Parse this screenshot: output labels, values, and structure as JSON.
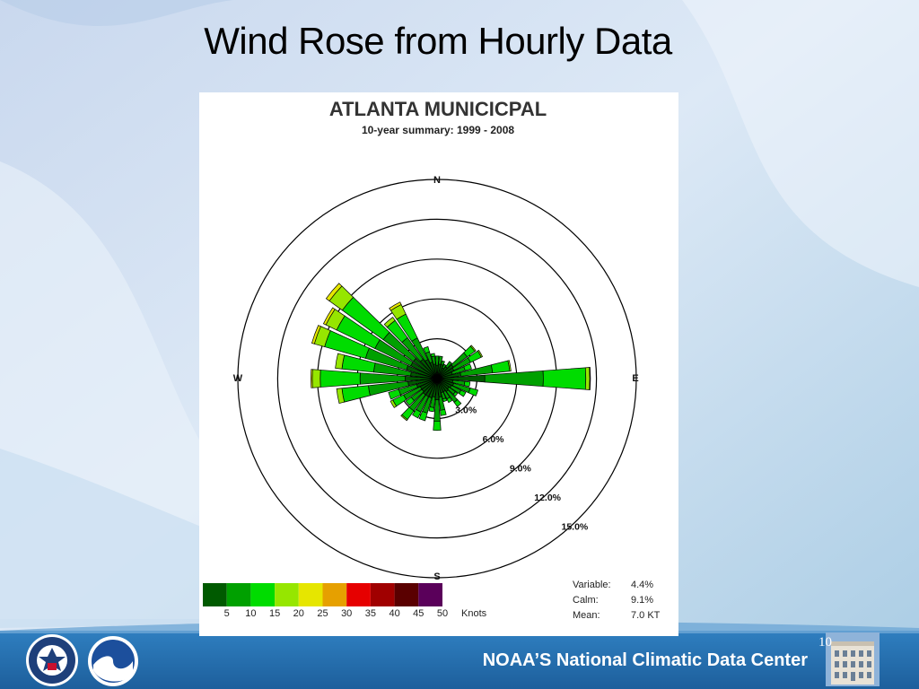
{
  "slide": {
    "title": "Wind Rose from Hourly Data",
    "footer": "NOAA’S National Climatic Data Center",
    "page_number": "10"
  },
  "chart_data": {
    "type": "wind-rose",
    "title": "ATLANTA MUNICICPAL",
    "subtitle": "10-year summary: 1999 - 2008",
    "directions_labels": {
      "north": "N",
      "east": "E",
      "south": "S",
      "west": "W"
    },
    "ring_labels": [
      "3.0%",
      "6.0%",
      "9.0%",
      "12.0%",
      "15.0%"
    ],
    "ring_values": [
      3,
      6,
      9,
      12,
      15
    ],
    "speed_bins_knots": [
      "5",
      "10",
      "15",
      "20",
      "25",
      "30",
      "35",
      "40",
      "45",
      "50"
    ],
    "speed_colors": [
      "#005a00",
      "#00a000",
      "#00dc00",
      "#96e600",
      "#e6e600",
      "#e6a000",
      "#e60000",
      "#a00000",
      "#5a0000",
      "#5a005a"
    ],
    "units_label": "Knots",
    "stats": [
      {
        "label": "Variable:",
        "value": "4.4%"
      },
      {
        "label": "Calm:",
        "value": "9.1%"
      },
      {
        "label": "Mean:",
        "value": "7.0 KT"
      }
    ],
    "petals": [
      {
        "direction_deg": 0,
        "segments": [
          1.0,
          0.7
        ]
      },
      {
        "direction_deg": 10,
        "segments": [
          1.1,
          0.6
        ]
      },
      {
        "direction_deg": 20,
        "segments": [
          1.1,
          0.3
        ]
      },
      {
        "direction_deg": 30,
        "segments": [
          0.9,
          0.3
        ]
      },
      {
        "direction_deg": 40,
        "segments": [
          1.1,
          0.5
        ]
      },
      {
        "direction_deg": 50,
        "segments": [
          1.5,
          1.3,
          0.7,
          0.1
        ]
      },
      {
        "direction_deg": 60,
        "segments": [
          1.4,
          1.4,
          0.9,
          0.1
        ]
      },
      {
        "direction_deg": 70,
        "segments": [
          1.2,
          1.0,
          0.5
        ]
      },
      {
        "direction_deg": 80,
        "segments": [
          1.8,
          2.4,
          1.3,
          0.1
        ]
      },
      {
        "direction_deg": 90,
        "segments": [
          3.6,
          4.4,
          3.2,
          0.3,
          0.05
        ]
      },
      {
        "direction_deg": 100,
        "segments": [
          1.2,
          0.9,
          0.4
        ]
      },
      {
        "direction_deg": 110,
        "segments": [
          1.3,
          1.3,
          0.6
        ]
      },
      {
        "direction_deg": 120,
        "segments": [
          1.2,
          0.8,
          0.4
        ]
      },
      {
        "direction_deg": 130,
        "segments": [
          1.1,
          0.6,
          0.2
        ]
      },
      {
        "direction_deg": 140,
        "segments": [
          1.2,
          1.0,
          0.4
        ]
      },
      {
        "direction_deg": 150,
        "segments": [
          1.1,
          0.6,
          0.3
        ]
      },
      {
        "direction_deg": 160,
        "segments": [
          1.1,
          0.5,
          0.2
        ]
      },
      {
        "direction_deg": 170,
        "segments": [
          1.4,
          1.0,
          0.4
        ]
      },
      {
        "direction_deg": 180,
        "segments": [
          1.6,
          1.6,
          0.7
        ]
      },
      {
        "direction_deg": 190,
        "segments": [
          1.4,
          0.8,
          0.3
        ]
      },
      {
        "direction_deg": 200,
        "segments": [
          1.5,
          1.2,
          0.6
        ]
      },
      {
        "direction_deg": 210,
        "segments": [
          1.5,
          1.3,
          0.5
        ]
      },
      {
        "direction_deg": 220,
        "segments": [
          1.5,
          1.5,
          0.8,
          0.1
        ]
      },
      {
        "direction_deg": 230,
        "segments": [
          1.4,
          1.0,
          0.5
        ]
      },
      {
        "direction_deg": 240,
        "segments": [
          1.4,
          1.4,
          0.9,
          0.2
        ]
      },
      {
        "direction_deg": 250,
        "segments": [
          1.6,
          1.4,
          0.8
        ]
      },
      {
        "direction_deg": 260,
        "segments": [
          2.2,
          3.0,
          2.0,
          0.4
        ]
      },
      {
        "direction_deg": 270,
        "segments": [
          2.4,
          3.4,
          3.0,
          0.6,
          0.1
        ]
      },
      {
        "direction_deg": 280,
        "segments": [
          2.0,
          2.8,
          2.4,
          0.5
        ]
      },
      {
        "direction_deg": 290,
        "segments": [
          2.4,
          3.2,
          3.2,
          0.8,
          0.2
        ]
      },
      {
        "direction_deg": 300,
        "segments": [
          2.2,
          3.0,
          3.2,
          0.9,
          0.2
        ]
      },
      {
        "direction_deg": 310,
        "segments": [
          2.2,
          2.8,
          3.8,
          1.2,
          0.3
        ]
      },
      {
        "direction_deg": 320,
        "segments": [
          1.8,
          2.0,
          1.6,
          0.3
        ]
      },
      {
        "direction_deg": 330,
        "segments": [
          1.6,
          1.8,
          2.0,
          0.8,
          0.2
        ]
      },
      {
        "direction_deg": 340,
        "segments": [
          1.3,
          0.8,
          0.4
        ]
      },
      {
        "direction_deg": 350,
        "segments": [
          1.1,
          0.6,
          0.2
        ]
      }
    ]
  }
}
